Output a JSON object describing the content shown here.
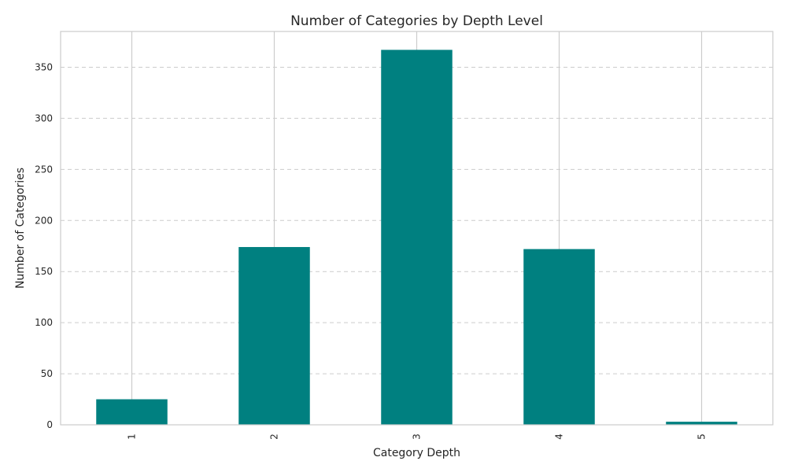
{
  "chart_data": {
    "type": "bar",
    "title": "Number of Categories by Depth Level",
    "xlabel": "Category Depth",
    "ylabel": "Number of Categories",
    "categories": [
      "1",
      "2",
      "3",
      "4",
      "5"
    ],
    "values": [
      25,
      174,
      367,
      172,
      3
    ],
    "ylim": [
      0,
      385
    ],
    "yticks": [
      0,
      50,
      100,
      150,
      200,
      250,
      300,
      350
    ],
    "grid": true,
    "legend": "none",
    "colors": {
      "bar": "#008080",
      "grid": "#cccccc",
      "frame": "#cccccc",
      "text": "#262626"
    }
  }
}
